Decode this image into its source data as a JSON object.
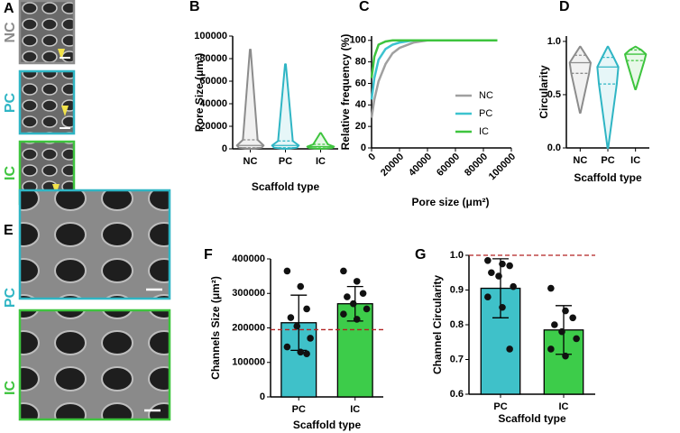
{
  "images": [
    {
      "label": "A",
      "rows": [
        "NC",
        "PC",
        "IC"
      ]
    },
    {
      "label": "E",
      "rows": [
        "PC",
        "IC"
      ]
    }
  ],
  "chart_data": [
    {
      "type": "violin",
      "label": "B",
      "x_label": "Scaffold type",
      "y_label": "Pore Size (μm²)",
      "categories": [
        "NC",
        "PC",
        "IC"
      ],
      "colors": [
        "#8c8c8c",
        "#2fb5c4",
        "#3ec43e"
      ],
      "stats": [
        {
          "min": 0,
          "q1": 1000,
          "median": 3000,
          "q3": 8000,
          "max": 88000
        },
        {
          "min": 0,
          "q1": 1000,
          "median": 3000,
          "q3": 7000,
          "max": 75000
        },
        {
          "min": 0,
          "q1": 800,
          "median": 2000,
          "q3": 4000,
          "max": 14000
        }
      ],
      "ylim": [
        0,
        100000
      ],
      "yticks": [
        0,
        20000,
        40000,
        60000,
        80000,
        100000
      ]
    },
    {
      "type": "line",
      "label": "C",
      "x_label": "Pore size (μm²)",
      "y_label": "Relative frequency (%)",
      "x": [
        0,
        2000,
        5000,
        10000,
        15000,
        20000,
        30000,
        40000,
        60000,
        90000
      ],
      "series": [
        {
          "name": "NC",
          "color": "#a0a0a0",
          "values": [
            28,
            45,
            62,
            78,
            88,
            93,
            98,
            100,
            100,
            100
          ]
        },
        {
          "name": "PC",
          "color": "#3cc3cf",
          "values": [
            45,
            65,
            82,
            92,
            96,
            98,
            100,
            100,
            100,
            100
          ]
        },
        {
          "name": "IC",
          "color": "#3ec43e",
          "values": [
            65,
            85,
            96,
            99,
            100,
            100,
            100,
            100,
            100,
            100
          ]
        }
      ],
      "xlim": [
        0,
        100000
      ],
      "xticks": [
        0,
        20000,
        40000,
        60000,
        80000,
        100000
      ],
      "ylim": [
        0,
        104
      ],
      "yticks": [
        0,
        20,
        40,
        60,
        80,
        100
      ],
      "legend": "bottom-right"
    },
    {
      "type": "violin",
      "label": "D",
      "x_label": "Scaffold type",
      "y_label": "Circularity",
      "categories": [
        "NC",
        "PC",
        "IC"
      ],
      "colors": [
        "#8c8c8c",
        "#2fb5c4",
        "#3ec43e"
      ],
      "stats": [
        {
          "min": 0.33,
          "q1": 0.7,
          "median": 0.8,
          "q3": 0.87,
          "max": 0.95
        },
        {
          "min": 0.0,
          "q1": 0.6,
          "median": 0.76,
          "q3": 0.85,
          "max": 0.95
        },
        {
          "min": 0.55,
          "q1": 0.82,
          "median": 0.88,
          "q3": 0.92,
          "max": 0.95
        }
      ],
      "ylim": [
        0,
        1.05
      ],
      "yticks": [
        {
          "value": 0,
          "label": "0.0"
        },
        0.5,
        {
          "value": 1,
          "label": "1.0"
        }
      ]
    },
    {
      "type": "bar",
      "label": "F",
      "x_label": "Scaffold type",
      "y_label": "Channels Size (μm²)",
      "categories": [
        "PC",
        "IC"
      ],
      "colors": [
        "#3fc1c9",
        "#3dcc4a"
      ],
      "values": [
        215000,
        270000
      ],
      "errors": [
        80000,
        50000
      ],
      "points": [
        [
          365000,
          320000,
          255000,
          230000,
          205000,
          170000,
          145000,
          130000,
          125000
        ],
        [
          365000,
          335000,
          300000,
          290000,
          270000,
          255000,
          240000,
          225000
        ]
      ],
      "reference_line": 195000,
      "ylim": [
        0,
        400000
      ],
      "yticks": [
        0,
        100000,
        200000,
        300000,
        400000
      ]
    },
    {
      "type": "bar",
      "label": "G",
      "x_label": "Scaffold type",
      "y_label": "Channel Circularity",
      "categories": [
        "PC",
        "IC"
      ],
      "colors": [
        "#3fc1c9",
        "#3dcc4a"
      ],
      "values": [
        0.905,
        0.785
      ],
      "errors": [
        0.085,
        0.07
      ],
      "points": [
        [
          0.985,
          0.975,
          0.97,
          0.95,
          0.94,
          0.91,
          0.88,
          0.85,
          0.73
        ],
        [
          0.905,
          0.84,
          0.82,
          0.8,
          0.78,
          0.76,
          0.73,
          0.71
        ]
      ],
      "reference_line": 1.0,
      "ylim": [
        0.6,
        1.0
      ],
      "yticks": [
        0.6,
        0.7,
        0.8,
        0.9,
        {
          "value": 1.0,
          "label": "1.0"
        }
      ]
    }
  ]
}
